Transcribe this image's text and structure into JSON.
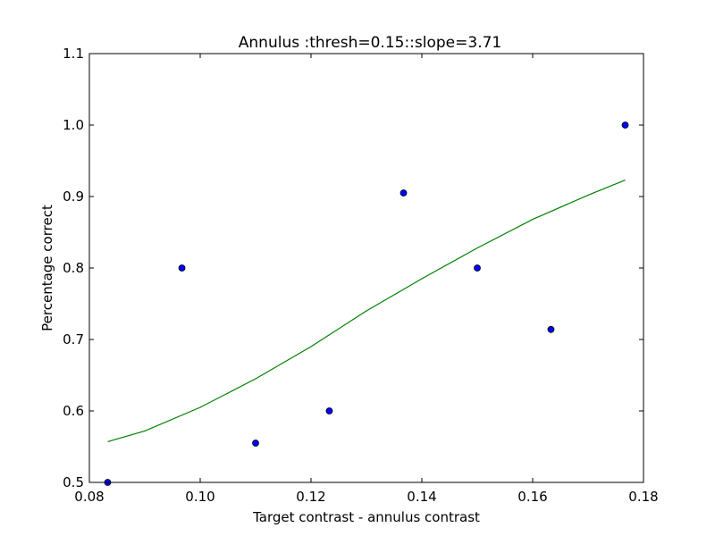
{
  "chart_data": {
    "type": "scatter",
    "title": "Annulus :thresh=0.15::slope=3.71",
    "xlabel": "Target contrast - annulus contrast",
    "ylabel": "Percentage correct",
    "xlim": [
      0.08,
      0.18
    ],
    "ylim": [
      0.5,
      1.1
    ],
    "xticks": [
      "0.08",
      "0.10",
      "0.12",
      "0.14",
      "0.16",
      "0.18"
    ],
    "yticks": [
      "0.5",
      "0.6",
      "0.7",
      "0.8",
      "0.9",
      "1.0",
      "1.1"
    ],
    "grid": false,
    "legend": "none",
    "points": {
      "color": "#0000ff",
      "x": [
        0.0833,
        0.0967,
        0.11,
        0.1233,
        0.1367,
        0.15,
        0.1633,
        0.1767
      ],
      "y": [
        0.5,
        0.8,
        0.555,
        0.6,
        0.905,
        0.8,
        0.714,
        1.0
      ]
    },
    "fit_curve": {
      "color": "#008000",
      "x": [
        0.0833,
        0.09,
        0.1,
        0.11,
        0.12,
        0.13,
        0.14,
        0.15,
        0.16,
        0.17,
        0.1767
      ],
      "y": [
        0.557,
        0.572,
        0.605,
        0.645,
        0.69,
        0.74,
        0.785,
        0.828,
        0.868,
        0.902,
        0.923
      ]
    }
  }
}
